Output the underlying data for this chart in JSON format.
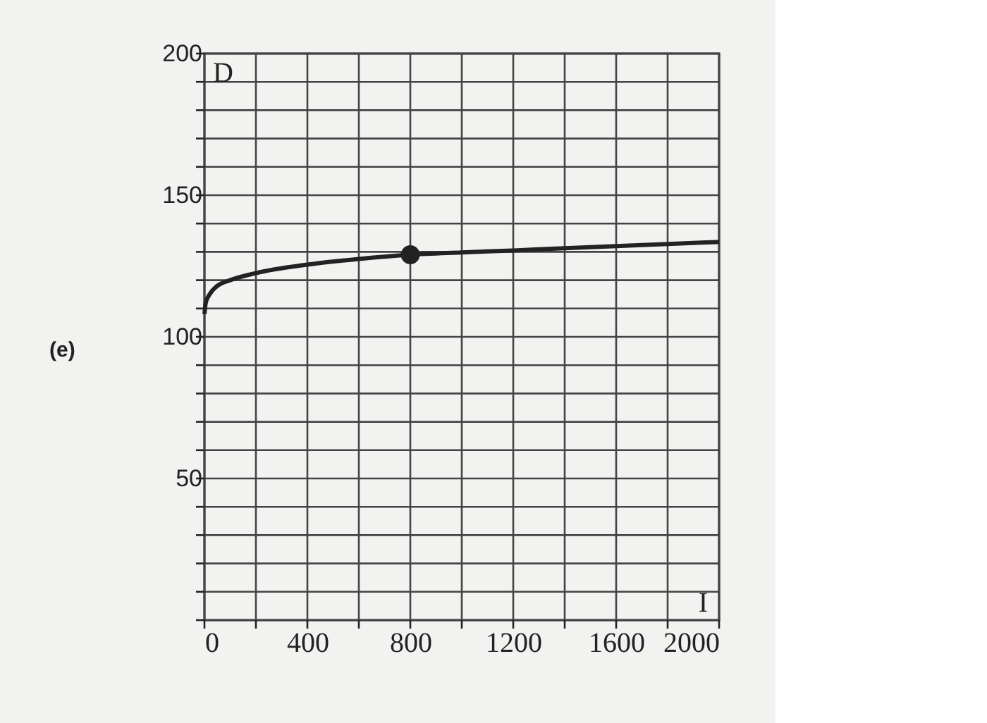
{
  "chart_data": {
    "type": "line",
    "xlabel": "I",
    "ylabel": "D",
    "annotations": [
      "(e)"
    ],
    "xlim": [
      0,
      2000
    ],
    "ylim": [
      0,
      200
    ],
    "xticks": [
      0,
      {
        "value": 200,
        "label": null
      },
      400,
      {
        "value": 600,
        "label": null
      },
      800,
      {
        "value": 1000,
        "label": null
      },
      1200,
      {
        "value": 1400,
        "label": null
      },
      1600,
      {
        "value": 1800,
        "label": null
      },
      2000
    ],
    "yticks": [
      {
        "value": 0,
        "label": null
      },
      {
        "value": 10,
        "label": null
      },
      {
        "value": 20,
        "label": null
      },
      {
        "value": 30,
        "label": null
      },
      {
        "value": 40,
        "label": null
      },
      50,
      {
        "value": 60,
        "label": null
      },
      {
        "value": 70,
        "label": null
      },
      {
        "value": 80,
        "label": null
      },
      {
        "value": 90,
        "label": null
      },
      100,
      {
        "value": 110,
        "label": null
      },
      {
        "value": 120,
        "label": null
      },
      {
        "value": 130,
        "label": null
      },
      {
        "value": 140,
        "label": null
      },
      150,
      {
        "value": 160,
        "label": null
      },
      {
        "value": 170,
        "label": null
      },
      {
        "value": 180,
        "label": null
      },
      {
        "value": 190,
        "label": null
      },
      200
    ],
    "grid": true,
    "series": [
      {
        "color": "#222222",
        "x": [
          0,
          5,
          20,
          50,
          100,
          200,
          400,
          600,
          800,
          1000,
          1200,
          1400,
          1600,
          1800,
          2000
        ],
        "values": [
          108,
          112,
          115,
          118,
          120,
          122.5,
          125.5,
          127.5,
          129,
          129.8,
          130.5,
          131.3,
          132,
          132.8,
          133.5
        ]
      },
      {
        "type": "scatter",
        "color": "#222222",
        "marker": "circle",
        "x": [
          800
        ],
        "values": [
          129
        ]
      }
    ]
  }
}
